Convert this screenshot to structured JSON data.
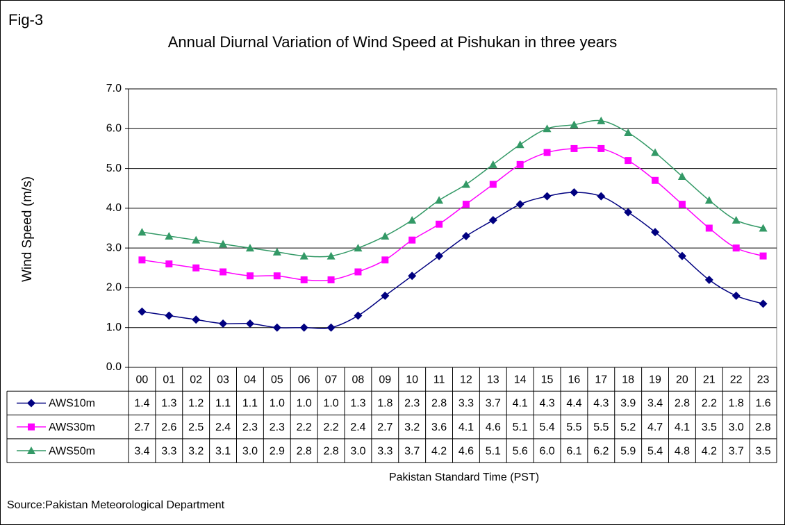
{
  "chart_data": {
    "type": "line",
    "label": "Fig-3",
    "title": "Annual Diurnal Variation of Wind Speed at Pishukan in three years",
    "y_label": "Wind Speed (m/s)",
    "x_label": "Pakistan Standard Time (PST)",
    "source": "Source:Pakistan Meteorological Department",
    "categories": [
      "00",
      "01",
      "02",
      "03",
      "04",
      "05",
      "06",
      "07",
      "08",
      "09",
      "10",
      "11",
      "12",
      "13",
      "14",
      "15",
      "16",
      "17",
      "18",
      "19",
      "20",
      "21",
      "22",
      "23"
    ],
    "series": [
      {
        "name": "AWS10m",
        "color": "#000080",
        "marker": "diamond",
        "values": [
          1.4,
          1.3,
          1.2,
          1.1,
          1.1,
          1.0,
          1.0,
          1.0,
          1.3,
          1.8,
          2.3,
          2.8,
          3.3,
          3.7,
          4.1,
          4.3,
          4.4,
          4.3,
          3.9,
          3.4,
          2.8,
          2.2,
          1.8,
          1.6
        ],
        "value_labels": [
          "1.4",
          "1.3",
          "1.2",
          "1.1",
          "1.1",
          "1.0",
          "1.0",
          "1.0",
          "1.3",
          "1.8",
          "2.3",
          "2.8",
          "3.3",
          "3.7",
          "4.1",
          "4.3",
          "4.4",
          "4.3",
          "3.9",
          "3.4",
          "2.8",
          "2.2",
          "1.8",
          "1.6"
        ]
      },
      {
        "name": "AWS30m",
        "color": "#ff00ff",
        "marker": "square",
        "values": [
          2.7,
          2.6,
          2.5,
          2.4,
          2.3,
          2.3,
          2.2,
          2.2,
          2.4,
          2.7,
          3.2,
          3.6,
          4.1,
          4.6,
          5.1,
          5.4,
          5.5,
          5.5,
          5.2,
          4.7,
          4.1,
          3.5,
          3.0,
          2.8
        ],
        "value_labels": [
          "2.7",
          "2.6",
          "2.5",
          "2.4",
          "2.3",
          "2.3",
          "2.2",
          "2.2",
          "2.4",
          "2.7",
          "3.2",
          "3.6",
          "4.1",
          "4.6",
          "5.1",
          "5.4",
          "5.5",
          "5.5",
          "5.2",
          "4.7",
          "4.1",
          "3.5",
          "3.0",
          "2.8"
        ]
      },
      {
        "name": "AWS50m",
        "color": "#339966",
        "marker": "triangle",
        "values": [
          3.4,
          3.3,
          3.2,
          3.1,
          3.0,
          2.9,
          2.8,
          2.8,
          3.0,
          3.3,
          3.7,
          4.2,
          4.6,
          5.1,
          5.6,
          6.0,
          6.1,
          6.2,
          5.9,
          5.4,
          4.8,
          4.2,
          3.7,
          3.5
        ],
        "value_labels": [
          "3.4",
          "3.3",
          "3.2",
          "3.1",
          "3.0",
          "2.9",
          "2.8",
          "2.8",
          "3.0",
          "3.3",
          "3.7",
          "4.2",
          "4.6",
          "5.1",
          "5.6",
          "6.0",
          "6.1",
          "6.2",
          "5.9",
          "5.4",
          "4.8",
          "4.2",
          "3.7",
          "3.5"
        ]
      }
    ],
    "ylim": [
      0,
      7
    ],
    "yticks": [
      {
        "value": 0,
        "label": "0.0"
      },
      {
        "value": 1,
        "label": "1.0"
      },
      {
        "value": 2,
        "label": "2.0"
      },
      {
        "value": 3,
        "label": "3.0"
      },
      {
        "value": 4,
        "label": "4.0"
      },
      {
        "value": 5,
        "label": "5.0"
      },
      {
        "value": 6,
        "label": "6.0"
      },
      {
        "value": 7,
        "label": "7.0"
      }
    ],
    "grid": true
  }
}
